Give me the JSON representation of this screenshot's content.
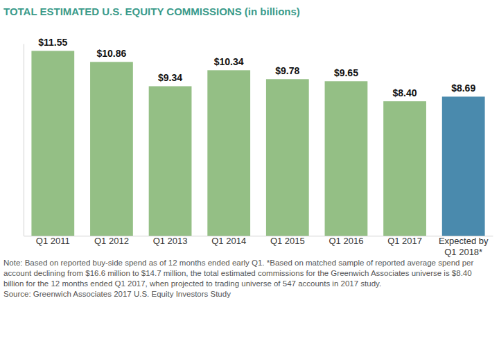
{
  "chart_data": {
    "type": "bar",
    "title": "TOTAL ESTIMATED U.S. EQUITY COMMISSIONS (in billions)",
    "categories": [
      "Q1 2011",
      "Q1 2012",
      "Q1 2013",
      "Q1 2014",
      "Q1 2015",
      "Q1 2016",
      "Q1 2017",
      "Expected by Q1 2018*"
    ],
    "values": [
      11.55,
      10.86,
      9.34,
      10.34,
      9.78,
      9.65,
      8.4,
      8.69
    ],
    "value_labels": [
      "$11.55",
      "$10.86",
      "$9.34",
      "$10.34",
      "$9.78",
      "$9.65",
      "$8.40",
      "$8.69"
    ],
    "colors": [
      "#94bf85",
      "#94bf85",
      "#94bf85",
      "#94bf85",
      "#94bf85",
      "#94bf85",
      "#94bf85",
      "#4a8aad"
    ],
    "ylim": [
      0,
      12
    ],
    "grid": false,
    "data_labels": true,
    "tick_labels": "x",
    "note": "Note: Based on reported buy-side spend as of 12 months ended early Q1. *Based on matched sample of reported average spend per account declining from $16.6 million to $14.7 million, the total estimated commissions for the Greenwich Associates universe is $8.40 billion for the 12 months ended Q1 2017, when projected to trading universe of 547 accounts in 2017 study.",
    "source": "Source: Greenwich Associates 2017 U.S. Equity Investors Study"
  }
}
